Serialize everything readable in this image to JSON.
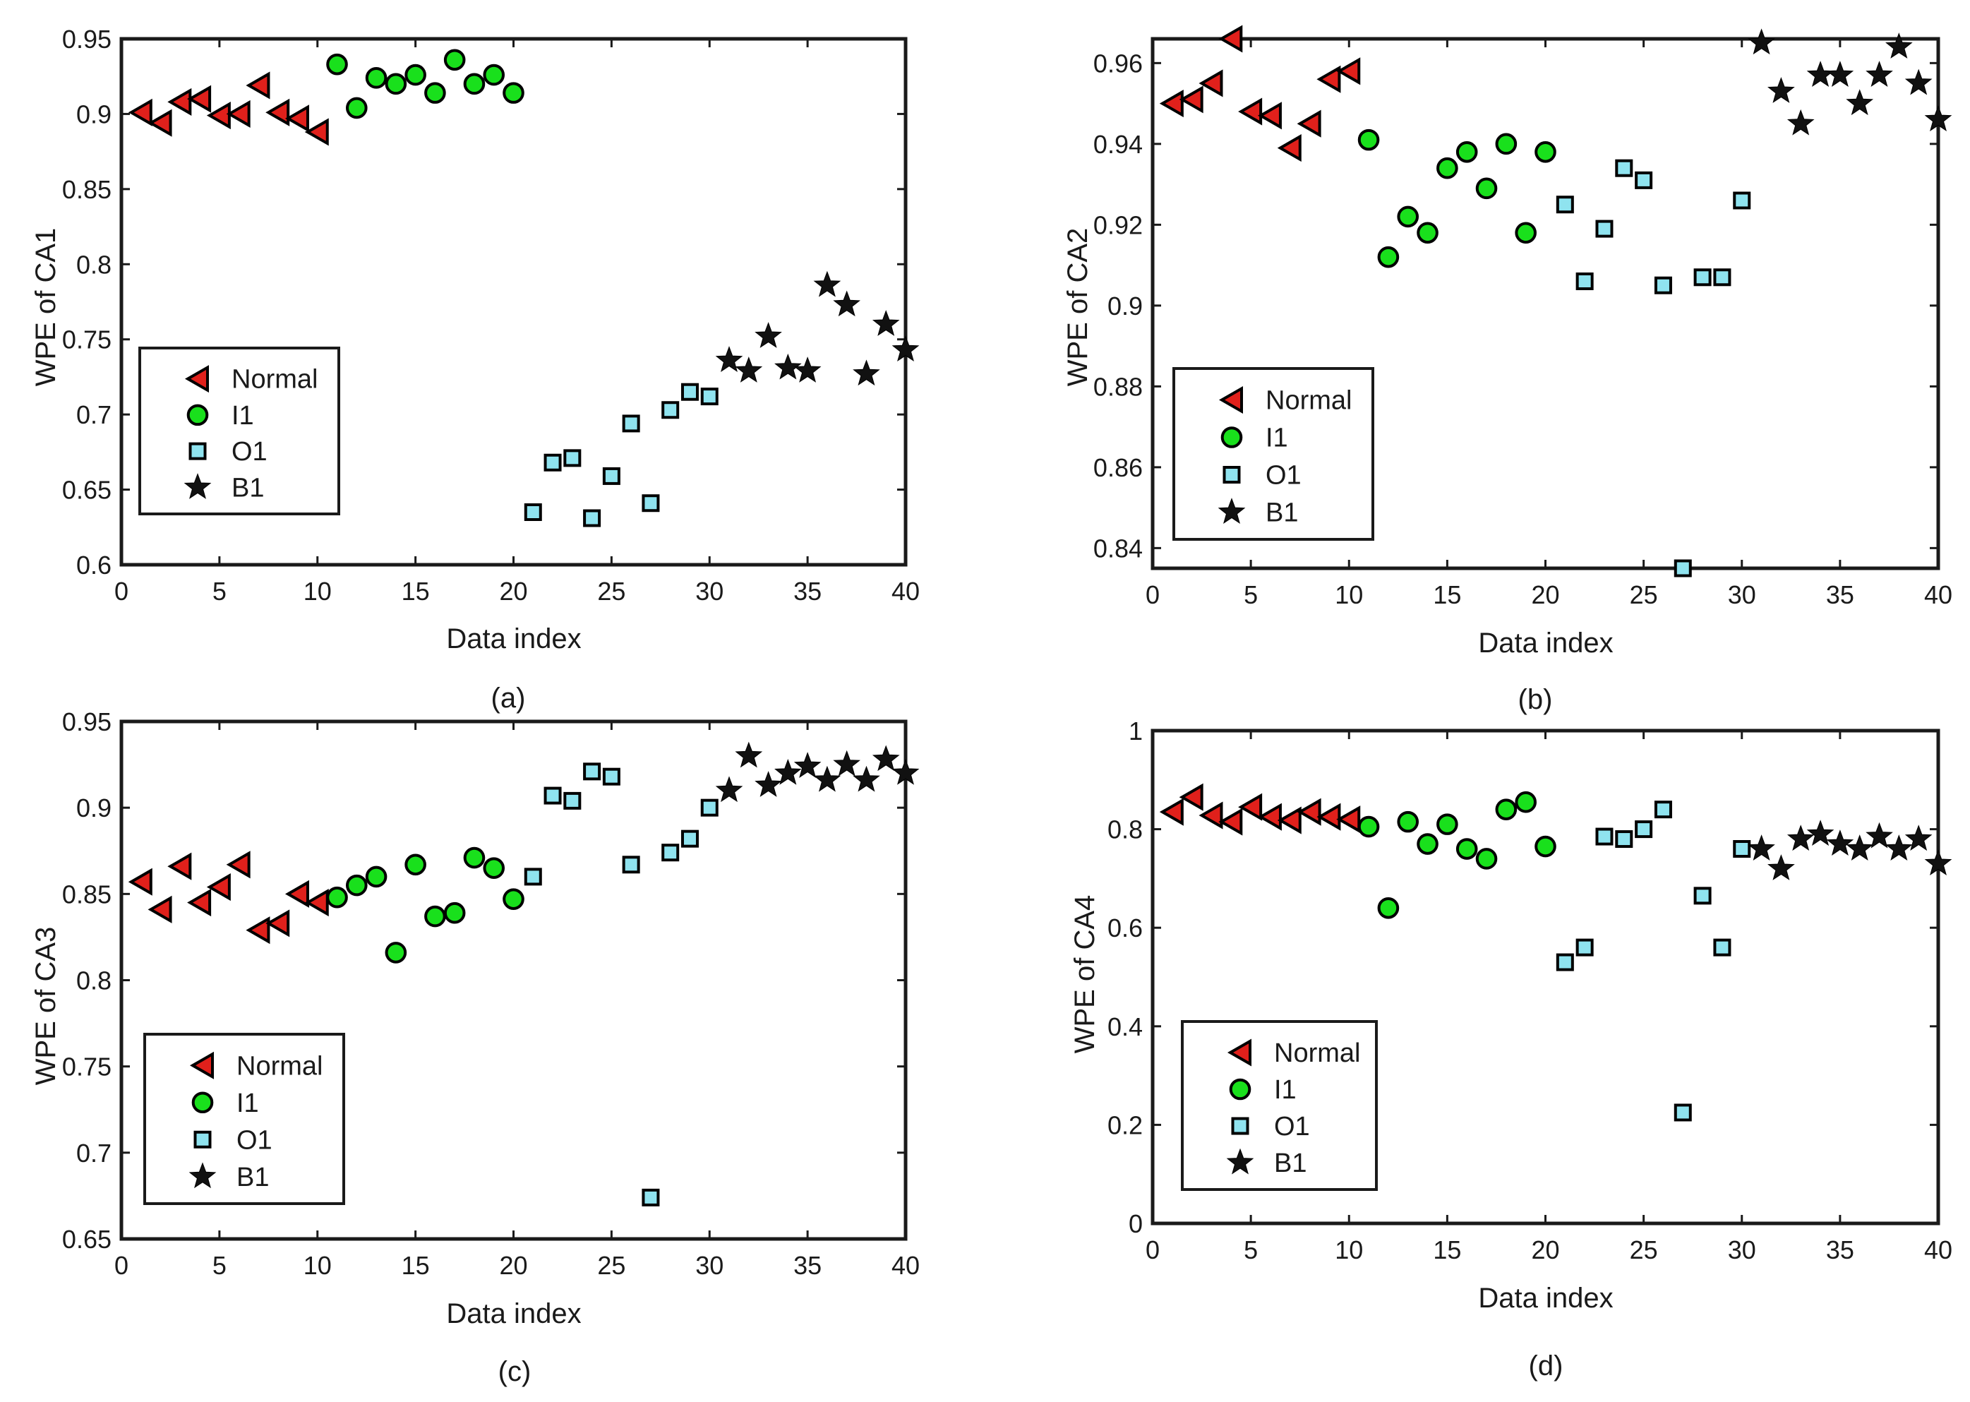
{
  "markers": {
    "Normal": {
      "shape": "triangle-left",
      "fill": "#e0201b"
    },
    "I1": {
      "shape": "circle",
      "fill": "#19e01c"
    },
    "O1": {
      "shape": "square",
      "fill": "#8fe3ef"
    },
    "B1": {
      "shape": "star",
      "fill": "#111111"
    }
  },
  "chart_data": [
    {
      "type": "scatter",
      "caption": "(a)",
      "xlabel": "Data index",
      "ylabel": "WPE of CA1",
      "xlim": [
        0,
        40
      ],
      "ylim": [
        0.6,
        0.95
      ],
      "xticks": [
        0,
        5,
        10,
        15,
        20,
        25,
        30,
        35,
        40
      ],
      "yticks": [
        0.6,
        0.65,
        0.7,
        0.75,
        0.8,
        0.85,
        0.9,
        0.95
      ],
      "ytick_labels": [
        "0.6",
        "0.65",
        "0.7",
        "0.75",
        "0.8",
        "0.85",
        "0.9",
        "0.95"
      ],
      "legend": {
        "position": "middle-left",
        "entries": [
          "Normal",
          "I1",
          "O1",
          "B1"
        ]
      },
      "series": [
        {
          "name": "Normal",
          "x": [
            1,
            2,
            3,
            4,
            5,
            6,
            7,
            8,
            9,
            10
          ],
          "y": [
            0.901,
            0.894,
            0.908,
            0.91,
            0.899,
            0.9,
            0.919,
            0.901,
            0.897,
            0.888
          ]
        },
        {
          "name": "I1",
          "x": [
            11,
            12,
            13,
            14,
            15,
            16,
            17,
            18,
            19,
            20
          ],
          "y": [
            0.933,
            0.904,
            0.924,
            0.92,
            0.926,
            0.914,
            0.936,
            0.92,
            0.926,
            0.914
          ]
        },
        {
          "name": "O1",
          "x": [
            21,
            22,
            23,
            24,
            25,
            26,
            27,
            28,
            29,
            30
          ],
          "y": [
            0.635,
            0.668,
            0.671,
            0.631,
            0.659,
            0.694,
            0.641,
            0.703,
            0.715,
            0.712
          ]
        },
        {
          "name": "B1",
          "x": [
            31,
            32,
            33,
            34,
            35,
            36,
            37,
            38,
            39,
            40
          ],
          "y": [
            0.736,
            0.729,
            0.752,
            0.731,
            0.729,
            0.786,
            0.773,
            0.727,
            0.76,
            0.743
          ]
        }
      ]
    },
    {
      "type": "scatter",
      "caption": "(b)",
      "xlabel": "Data index",
      "ylabel": "WPE of CA2",
      "xlim": [
        0,
        40
      ],
      "ylim": [
        0.835,
        0.966
      ],
      "xticks": [
        0,
        5,
        10,
        15,
        20,
        25,
        30,
        35,
        40
      ],
      "yticks": [
        0.84,
        0.86,
        0.88,
        0.9,
        0.92,
        0.94,
        0.96
      ],
      "ytick_labels": [
        "0.84",
        "0.86",
        "0.88",
        "0.9",
        "0.92",
        "0.94",
        "0.96"
      ],
      "legend": {
        "position": "bottom-left",
        "entries": [
          "Normal",
          "I1",
          "O1",
          "B1"
        ]
      },
      "series": [
        {
          "name": "Normal",
          "x": [
            1,
            2,
            3,
            4,
            5,
            6,
            7,
            8,
            9,
            10
          ],
          "y": [
            0.95,
            0.951,
            0.955,
            0.966,
            0.948,
            0.947,
            0.939,
            0.945,
            0.956,
            0.958
          ]
        },
        {
          "name": "I1",
          "x": [
            11,
            12,
            13,
            14,
            15,
            16,
            17,
            18,
            19,
            20
          ],
          "y": [
            0.941,
            0.912,
            0.922,
            0.918,
            0.934,
            0.938,
            0.929,
            0.94,
            0.918,
            0.938
          ]
        },
        {
          "name": "O1",
          "x": [
            21,
            22,
            23,
            24,
            25,
            26,
            27,
            28,
            29,
            30
          ],
          "y": [
            0.925,
            0.906,
            0.919,
            0.934,
            0.931,
            0.905,
            0.835,
            0.907,
            0.907,
            0.926
          ]
        },
        {
          "name": "B1",
          "x": [
            31,
            32,
            33,
            34,
            35,
            36,
            37,
            38,
            39,
            40
          ],
          "y": [
            0.965,
            0.953,
            0.945,
            0.957,
            0.957,
            0.95,
            0.957,
            0.964,
            0.955,
            0.946
          ]
        }
      ]
    },
    {
      "type": "scatter",
      "caption": "(c)",
      "xlabel": "Data index",
      "ylabel": "WPE of CA3",
      "xlim": [
        0,
        40
      ],
      "ylim": [
        0.65,
        0.95
      ],
      "xticks": [
        0,
        5,
        10,
        15,
        20,
        25,
        30,
        35,
        40
      ],
      "yticks": [
        0.65,
        0.7,
        0.75,
        0.8,
        0.85,
        0.9,
        0.95
      ],
      "ytick_labels": [
        "0.65",
        "0.7",
        "0.75",
        "0.8",
        "0.85",
        "0.9",
        "0.95"
      ],
      "legend": {
        "position": "bottom-left",
        "entries": [
          "Normal",
          "I1",
          "O1",
          "B1"
        ]
      },
      "series": [
        {
          "name": "Normal",
          "x": [
            1,
            2,
            3,
            4,
            5,
            6,
            7,
            8,
            9,
            10
          ],
          "y": [
            0.857,
            0.841,
            0.866,
            0.845,
            0.854,
            0.867,
            0.829,
            0.833,
            0.85,
            0.845
          ]
        },
        {
          "name": "I1",
          "x": [
            11,
            12,
            13,
            14,
            15,
            16,
            17,
            18,
            19,
            20
          ],
          "y": [
            0.848,
            0.855,
            0.86,
            0.816,
            0.867,
            0.837,
            0.839,
            0.871,
            0.865,
            0.847
          ]
        },
        {
          "name": "O1",
          "x": [
            21,
            22,
            23,
            24,
            25,
            26,
            27,
            28,
            29,
            30
          ],
          "y": [
            0.86,
            0.907,
            0.904,
            0.921,
            0.918,
            0.867,
            0.674,
            0.874,
            0.882,
            0.9
          ]
        },
        {
          "name": "B1",
          "x": [
            31,
            32,
            33,
            34,
            35,
            36,
            37,
            38,
            39,
            40
          ],
          "y": [
            0.91,
            0.93,
            0.913,
            0.92,
            0.924,
            0.916,
            0.925,
            0.916,
            0.928,
            0.92
          ]
        }
      ]
    },
    {
      "type": "scatter",
      "caption": "(d)",
      "xlabel": "Data index",
      "ylabel": "WPE of CA4",
      "xlim": [
        0,
        40
      ],
      "ylim": [
        0,
        1
      ],
      "xticks": [
        0,
        5,
        10,
        15,
        20,
        25,
        30,
        35,
        40
      ],
      "yticks": [
        0,
        0.2,
        0.4,
        0.6,
        0.8,
        1
      ],
      "ytick_labels": [
        "0",
        "0.2",
        "0.4",
        "0.6",
        "0.8",
        "1"
      ],
      "legend": {
        "position": "bottom-left",
        "entries": [
          "Normal",
          "I1",
          "O1",
          "B1"
        ]
      },
      "series": [
        {
          "name": "Normal",
          "x": [
            1,
            2,
            3,
            4,
            5,
            6,
            7,
            8,
            9,
            10
          ],
          "y": [
            0.835,
            0.865,
            0.828,
            0.815,
            0.845,
            0.825,
            0.818,
            0.835,
            0.825,
            0.82
          ]
        },
        {
          "name": "I1",
          "x": [
            11,
            12,
            13,
            14,
            15,
            16,
            17,
            18,
            19,
            20
          ],
          "y": [
            0.805,
            0.64,
            0.815,
            0.77,
            0.81,
            0.76,
            0.74,
            0.84,
            0.855,
            0.765
          ]
        },
        {
          "name": "O1",
          "x": [
            21,
            22,
            23,
            24,
            25,
            26,
            27,
            28,
            29,
            30
          ],
          "y": [
            0.53,
            0.56,
            0.785,
            0.78,
            0.8,
            0.84,
            0.225,
            0.665,
            0.56,
            0.76
          ]
        },
        {
          "name": "B1",
          "x": [
            31,
            32,
            33,
            34,
            35,
            36,
            37,
            38,
            39,
            40
          ],
          "y": [
            0.76,
            0.72,
            0.78,
            0.79,
            0.77,
            0.76,
            0.785,
            0.76,
            0.78,
            0.73
          ]
        }
      ]
    }
  ]
}
